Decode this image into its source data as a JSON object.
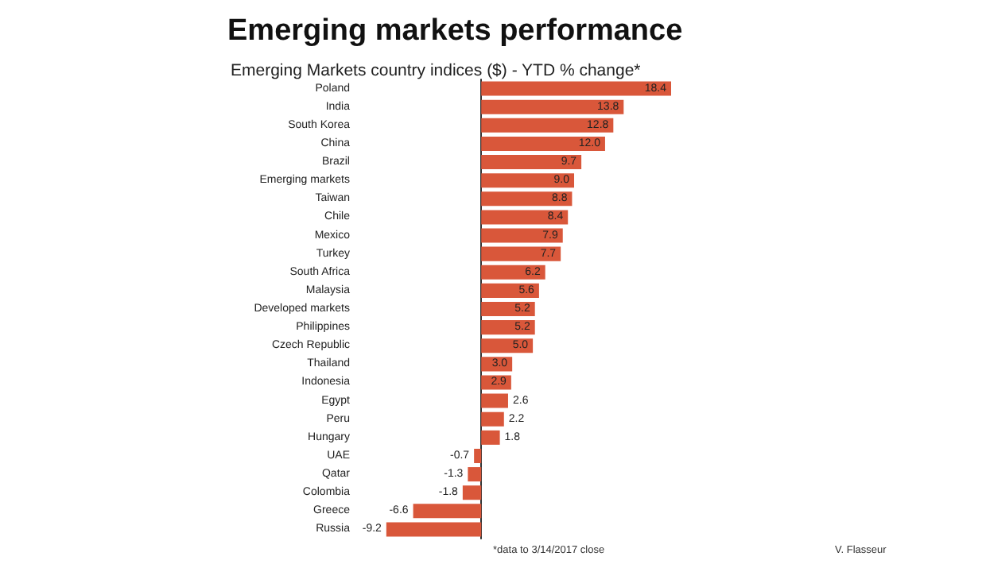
{
  "chart_data": {
    "type": "bar",
    "orientation": "horizontal",
    "title": "Emerging markets performance",
    "subtitle": "Emerging Markets country indices ($) - YTD % change*",
    "categories": [
      "Poland",
      "India",
      "South Korea",
      "China",
      "Brazil",
      "Emerging markets",
      "Taiwan",
      "Chile",
      "Mexico",
      "Turkey",
      "South Africa",
      "Malaysia",
      "Developed markets",
      "Philippines",
      "Czech Republic",
      "Thailand",
      "Indonesia",
      "Egypt",
      "Peru",
      "Hungary",
      "UAE",
      "Qatar",
      "Colombia",
      "Greece",
      "Russia"
    ],
    "values": [
      18.4,
      13.8,
      12.8,
      12.0,
      9.7,
      9.0,
      8.8,
      8.4,
      7.9,
      7.7,
      6.2,
      5.6,
      5.2,
      5.2,
      5.0,
      3.0,
      2.9,
      2.6,
      2.2,
      1.8,
      -0.7,
      -1.3,
      -1.8,
      -6.6,
      -9.2
    ],
    "color": "#d9573a",
    "value_labels": [
      "18.4",
      "13.8",
      "12.8",
      "12.0",
      "9.7",
      "9.0",
      "8.8",
      "8.4",
      "7.9",
      "7.7",
      "6.2",
      "5.6",
      "5.2",
      "5.2",
      "5.0",
      "3.0",
      "2.9",
      "2.6",
      "2.2",
      "1.8",
      "-0.7",
      "-1.3",
      "-1.8",
      "-6.6",
      "-9.2"
    ],
    "annotations": [
      "*data to 3/14/2017 close",
      "V. Flasseur"
    ]
  }
}
